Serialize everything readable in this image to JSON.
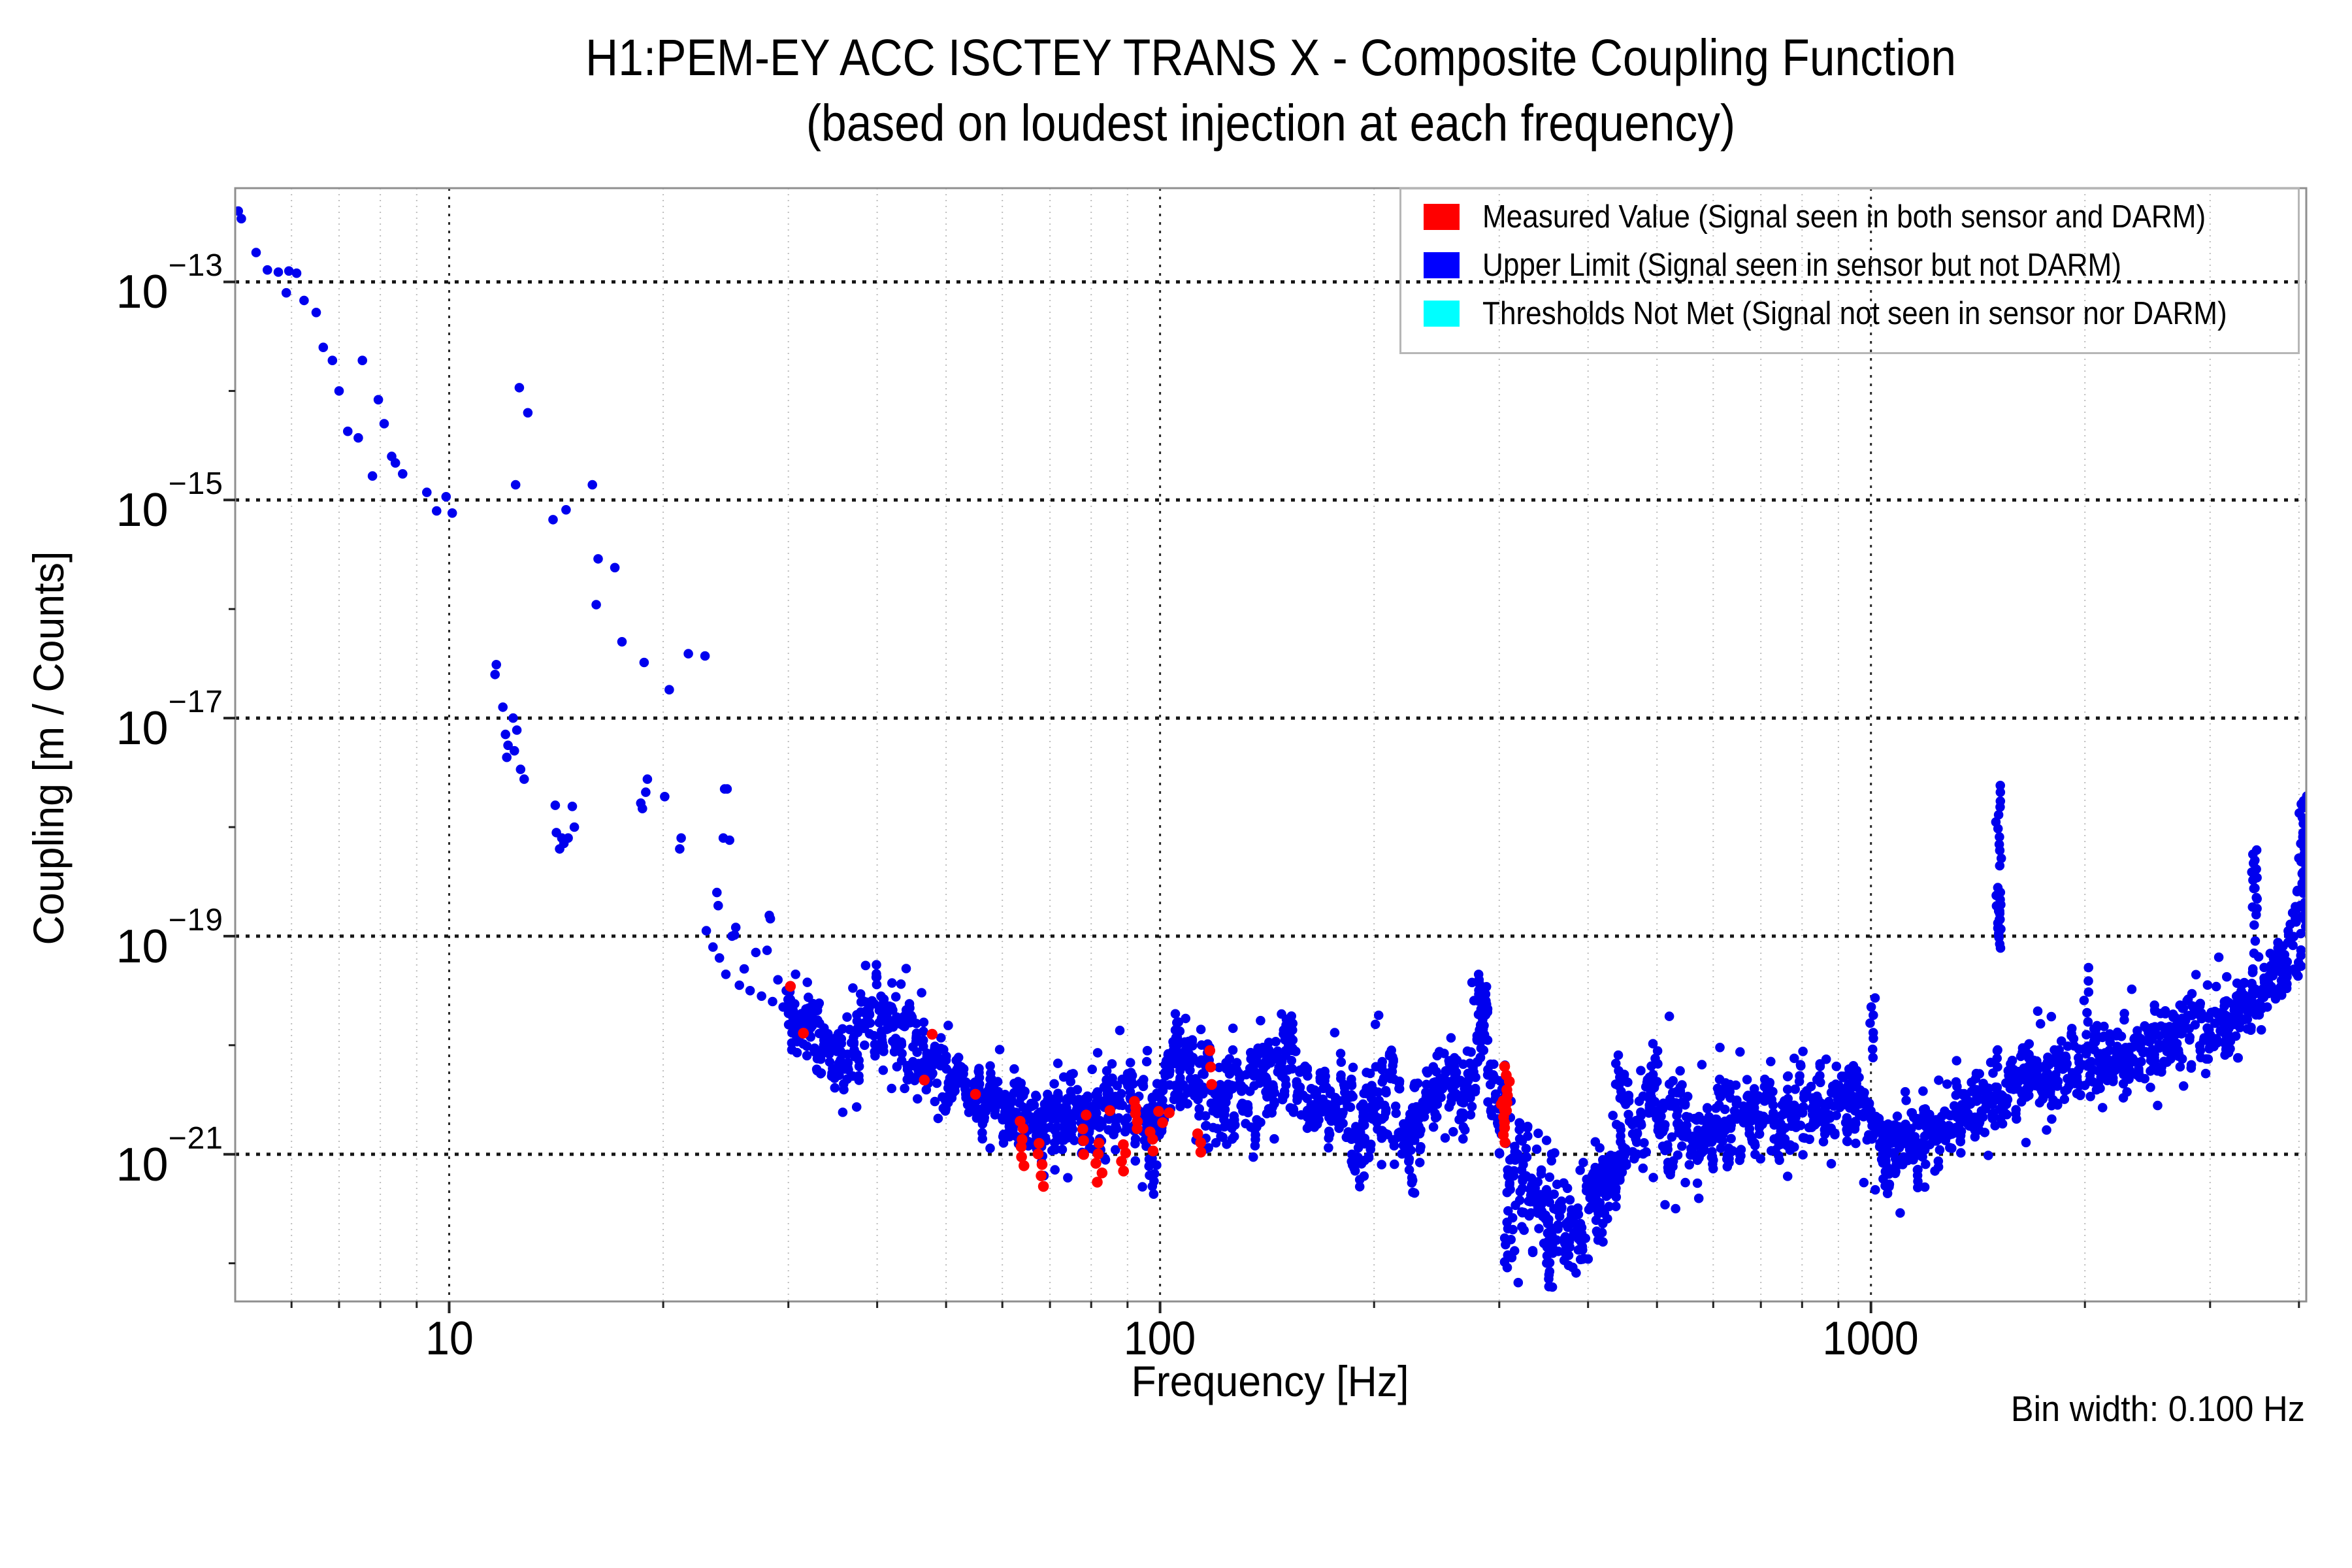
{
  "title": {
    "line1": "H1:PEM-EY ACC ISCTEY TRANS X - Composite Coupling Function",
    "line2": "(based on loudest injection at each frequency)"
  },
  "axes": {
    "x_label": "Frequency [Hz]",
    "y_label": "Coupling [m / Counts]",
    "x_ticks": [
      {
        "label": "10"
      },
      {
        "label": "100"
      },
      {
        "label": "1000"
      }
    ],
    "y_ticks": [
      {
        "base": "10",
        "exp": "−13"
      },
      {
        "base": "10",
        "exp": "−15"
      },
      {
        "base": "10",
        "exp": "−17"
      },
      {
        "base": "10",
        "exp": "−19"
      },
      {
        "base": "10",
        "exp": "−21"
      }
    ]
  },
  "annotations": {
    "bin_width": "Bin width: 0.100 Hz"
  },
  "legend": [
    {
      "label": "Measured Value (Signal seen in both sensor and DARM)",
      "color": "#ff0000"
    },
    {
      "label": "Upper Limit (Signal seen in sensor but not DARM)",
      "color": "#0000ff"
    },
    {
      "label": "Thresholds Not Met (Signal not seen in sensor nor DARM)",
      "color": "#00ffff"
    }
  ],
  "chart_data": {
    "type": "scatter",
    "title": "H1:PEM-EY ACC ISCTEY TRANS X - Composite Coupling Function (based on loudest injection at each frequency)",
    "xlabel": "Frequency [Hz]",
    "ylabel": "Coupling [m / Counts]",
    "x_scale": "log",
    "y_scale": "log",
    "xlim": [
      5,
      4096
    ],
    "ylim_log10": [
      -22.35,
      -12.14
    ],
    "bin_width_hz": 0.1,
    "grid": true,
    "legend_position": "upper right",
    "x_gridlines_major": [
      10,
      100,
      1000
    ],
    "x_gridlines_minor": [
      6,
      7,
      8,
      9,
      20,
      30,
      40,
      50,
      60,
      70,
      80,
      90,
      200,
      300,
      400,
      500,
      600,
      700,
      800,
      900,
      2000,
      3000,
      4000
    ],
    "y_gridlines_log10": [
      -13,
      -15,
      -17,
      -19,
      -21
    ],
    "y_ticks_minor_log10": [
      -14,
      -16,
      -18,
      -20,
      -22
    ],
    "series": [
      {
        "name": "Measured Value (Signal seen in both sensor and DARM)",
        "color": "#ff0000",
        "points": [
          [
            30.2,
            -19.46
          ],
          [
            31.5,
            -19.89
          ],
          [
            46.6,
            -20.32
          ],
          [
            47.8,
            -19.9
          ],
          [
            55,
            -20.45
          ],
          [
            85,
            -20.6
          ],
          [
            103,
            -20.62
          ],
          [
            117.5,
            -20.05
          ],
          [
            117.8,
            -20.2
          ],
          [
            118.2,
            -20.36
          ]
        ],
        "columns": [
          [
            64,
            -21.1,
            -20.7,
            6
          ],
          [
            68,
            -21.3,
            -20.9,
            5
          ],
          [
            78,
            -21.0,
            -20.65,
            4
          ],
          [
            82,
            -21.25,
            -20.9,
            5
          ],
          [
            88.8,
            -21.15,
            -20.9,
            4
          ],
          [
            93,
            -20.76,
            -20.53,
            5
          ],
          [
            97,
            -20.96,
            -20.79,
            3
          ],
          [
            100,
            -20.72,
            -20.6,
            2
          ],
          [
            113,
            -20.98,
            -20.82,
            3
          ],
          [
            304,
            -20.88,
            -20.5,
            8
          ],
          [
            306.5,
            -20.6,
            -20.2,
            7
          ]
        ]
      },
      {
        "name": "Upper Limit (Signal seen in sensor but not DARM)",
        "color": "#0000ff",
        "sparse_points": [
          [
            5.05,
            -12.35
          ],
          [
            5.1,
            -12.42
          ],
          [
            5.35,
            -12.73
          ],
          [
            5.55,
            -12.89
          ],
          [
            5.75,
            -12.91
          ],
          [
            5.95,
            -12.9
          ],
          [
            6.1,
            -12.92
          ],
          [
            5.9,
            -13.1
          ],
          [
            6.25,
            -13.17
          ],
          [
            6.5,
            -13.28
          ],
          [
            6.65,
            -13.6
          ],
          [
            6.85,
            -13.72
          ],
          [
            7.0,
            -14.0
          ],
          [
            7.55,
            -13.72
          ],
          [
            7.2,
            -14.37
          ],
          [
            7.45,
            -14.43
          ],
          [
            7.95,
            -14.08
          ],
          [
            8.1,
            -14.3
          ],
          [
            8.3,
            -14.6
          ],
          [
            8.4,
            -14.66
          ],
          [
            8.6,
            -14.76
          ],
          [
            7.8,
            -14.78
          ],
          [
            9.3,
            -14.93
          ],
          [
            9.6,
            -15.1
          ],
          [
            9.9,
            -14.97
          ],
          [
            10.1,
            -15.12
          ],
          [
            12.55,
            -13.97
          ],
          [
            12.9,
            -14.2
          ],
          [
            12.4,
            -14.86
          ],
          [
            14.0,
            -15.18
          ],
          [
            14.6,
            -15.09
          ],
          [
            15.9,
            -14.86
          ],
          [
            16.2,
            -15.54
          ],
          [
            17.1,
            -15.62
          ],
          [
            16.1,
            -15.96
          ],
          [
            17.5,
            -16.3
          ],
          [
            18.8,
            -16.49
          ],
          [
            20.4,
            -16.74
          ],
          [
            21.7,
            -16.41
          ],
          [
            22.9,
            -16.43
          ],
          [
            11.65,
            -16.51
          ],
          [
            11.6,
            -16.6
          ],
          [
            11.9,
            -16.9
          ],
          [
            12.3,
            -17.0
          ],
          [
            12.45,
            -17.11
          ],
          [
            12.0,
            -17.15
          ],
          [
            12.1,
            -17.25
          ],
          [
            12.35,
            -17.3
          ],
          [
            12.05,
            -17.36
          ],
          [
            12.6,
            -17.47
          ],
          [
            12.75,
            -17.56
          ],
          [
            14.1,
            -17.8
          ],
          [
            14.9,
            -17.81
          ],
          [
            14.15,
            -18.05
          ],
          [
            14.4,
            -18.1
          ],
          [
            15.0,
            -18.0
          ],
          [
            14.7,
            -18.1
          ],
          [
            14.5,
            -18.15
          ],
          [
            14.3,
            -18.2
          ],
          [
            18.6,
            -17.78
          ],
          [
            18.7,
            -17.83
          ],
          [
            19.0,
            -17.56
          ],
          [
            18.9,
            -17.68
          ],
          [
            20.1,
            -17.72
          ],
          [
            21.2,
            -18.1
          ],
          [
            21.1,
            -18.2
          ],
          [
            23.8,
            -18.6
          ],
          [
            23.9,
            -18.72
          ],
          [
            24.4,
            -17.65
          ],
          [
            24.6,
            -17.65
          ],
          [
            24.3,
            -18.1
          ],
          [
            24.8,
            -18.12
          ],
          [
            25.3,
            -18.92
          ],
          [
            25.2,
            -18.99
          ],
          [
            28.2,
            -18.81
          ],
          [
            28.3,
            -18.84
          ],
          [
            28.0,
            -19.13
          ],
          [
            23.0,
            -18.95
          ],
          [
            23.5,
            -19.1
          ],
          [
            24.0,
            -19.2
          ],
          [
            24.5,
            -19.35
          ],
          [
            25.0,
            -19.0
          ],
          [
            25.6,
            -19.45
          ],
          [
            26.0,
            -19.3
          ],
          [
            26.5,
            -19.5
          ],
          [
            27.0,
            -19.15
          ],
          [
            27.5,
            -19.55
          ],
          [
            28.5,
            -19.6
          ],
          [
            29.0,
            -19.4
          ],
          [
            29.5,
            -19.65
          ],
          [
            29.8,
            -19.5
          ]
        ],
        "band": [
          [
            30,
            -19.75,
            0.35
          ],
          [
            33,
            -19.9,
            0.35
          ],
          [
            36,
            -20.15,
            0.3
          ],
          [
            40,
            -19.65,
            0.4
          ],
          [
            44,
            -19.9,
            0.4
          ],
          [
            48,
            -20.3,
            0.35
          ],
          [
            52,
            -20.4,
            0.3
          ],
          [
            57,
            -20.5,
            0.3
          ],
          [
            62,
            -20.55,
            0.35
          ],
          [
            67,
            -20.75,
            0.4
          ],
          [
            72,
            -20.65,
            0.35
          ],
          [
            77,
            -20.6,
            0.4
          ],
          [
            82,
            -20.8,
            0.4
          ],
          [
            87,
            -20.45,
            0.35
          ],
          [
            92,
            -20.6,
            0.35
          ],
          [
            97,
            -20.75,
            0.45
          ],
          [
            102,
            -20.5,
            0.4
          ],
          [
            107,
            -20.2,
            0.45
          ],
          [
            112,
            -20.35,
            0.4
          ],
          [
            118,
            -20.45,
            0.45
          ],
          [
            125,
            -20.45,
            0.4
          ],
          [
            135,
            -20.45,
            0.4
          ],
          [
            145,
            -20.3,
            0.45
          ],
          [
            152,
            -20.2,
            0.5
          ],
          [
            160,
            -20.5,
            0.35
          ],
          [
            170,
            -20.45,
            0.4
          ],
          [
            180,
            -20.55,
            0.4
          ],
          [
            190,
            -20.9,
            0.4
          ],
          [
            200,
            -20.6,
            0.45
          ],
          [
            210,
            -20.35,
            0.45
          ],
          [
            222,
            -20.9,
            0.45
          ],
          [
            235,
            -20.5,
            0.4
          ],
          [
            250,
            -20.4,
            0.4
          ],
          [
            265,
            -20.55,
            0.4
          ],
          [
            278,
            -20.2,
            0.55
          ],
          [
            285,
            -19.9,
            0.6
          ],
          [
            295,
            -20.45,
            0.45
          ],
          [
            305,
            -20.55,
            0.5
          ],
          [
            315,
            -21.25,
            0.55
          ],
          [
            330,
            -21.3,
            0.55
          ],
          [
            345,
            -21.55,
            0.5
          ],
          [
            360,
            -21.35,
            0.5
          ],
          [
            375,
            -21.75,
            0.4
          ],
          [
            390,
            -21.6,
            0.5
          ],
          [
            410,
            -21.45,
            0.5
          ],
          [
            430,
            -21.2,
            0.5
          ],
          [
            445,
            -20.7,
            0.45
          ],
          [
            465,
            -20.9,
            0.4
          ],
          [
            490,
            -20.6,
            0.45
          ],
          [
            520,
            -20.7,
            0.45
          ],
          [
            560,
            -20.85,
            0.4
          ],
          [
            600,
            -20.7,
            0.4
          ],
          [
            650,
            -20.65,
            0.4
          ],
          [
            700,
            -20.6,
            0.4
          ],
          [
            750,
            -20.6,
            0.4
          ],
          [
            800,
            -20.55,
            0.4
          ],
          [
            860,
            -20.6,
            0.35
          ],
          [
            920,
            -20.55,
            0.35
          ],
          [
            980,
            -20.6,
            0.4
          ],
          [
            1040,
            -20.95,
            0.35
          ],
          [
            1100,
            -20.95,
            0.35
          ],
          [
            1180,
            -20.9,
            0.35
          ],
          [
            1260,
            -20.75,
            0.35
          ],
          [
            1350,
            -20.6,
            0.35
          ],
          [
            1450,
            -20.45,
            0.35
          ],
          [
            1550,
            -20.35,
            0.35
          ],
          [
            1650,
            -20.3,
            0.35
          ],
          [
            1750,
            -20.3,
            0.35
          ],
          [
            1850,
            -20.25,
            0.35
          ],
          [
            1950,
            -20.2,
            0.35
          ],
          [
            2100,
            -20.15,
            0.35
          ],
          [
            2250,
            -20.1,
            0.35
          ],
          [
            2400,
            -20.05,
            0.35
          ],
          [
            2550,
            -19.95,
            0.35
          ],
          [
            2700,
            -19.9,
            0.35
          ],
          [
            2850,
            -19.85,
            0.35
          ],
          [
            3000,
            -19.8,
            0.35
          ],
          [
            3150,
            -19.75,
            0.35
          ],
          [
            3300,
            -19.65,
            0.35
          ],
          [
            3450,
            -19.55,
            0.35
          ],
          [
            3600,
            -19.45,
            0.4
          ],
          [
            3750,
            -19.35,
            0.45
          ],
          [
            3850,
            -19.25,
            0.45
          ],
          [
            3950,
            -19.0,
            0.55
          ],
          [
            4030,
            -18.7,
            0.6
          ],
          [
            4096,
            -18.4,
            0.65
          ]
        ],
        "spikes": [
          [
            105.6,
            -20.05,
            -19.73,
            6
          ],
          [
            150,
            -20.05,
            -19.7,
            8
          ],
          [
            152.5,
            -20.0,
            -19.75,
            5
          ],
          [
            211,
            -20.3,
            -20.05,
            5
          ],
          [
            283,
            -19.95,
            -19.35,
            14
          ],
          [
            286,
            -19.8,
            -19.5,
            6
          ],
          [
            440,
            -20.5,
            -20.1,
            7
          ],
          [
            495,
            -20.4,
            -19.98,
            7
          ],
          [
            520,
            -19.75,
            -19.72,
            1
          ],
          [
            1005,
            -20.1,
            -19.57,
            8
          ],
          [
            1513,
            -19.1,
            -18.55,
            14
          ],
          [
            1513,
            -18.35,
            -17.62,
            12
          ],
          [
            1519,
            -19.0,
            -18.7,
            5
          ],
          [
            2010,
            -20.0,
            -19.3,
            8
          ],
          [
            3460,
            -18.9,
            -18.25,
            9
          ],
          [
            3478,
            -18.75,
            -18.2,
            7
          ],
          [
            3472,
            -19.15,
            -19.05,
            2
          ],
          [
            4050,
            -18.6,
            -17.78,
            10
          ],
          [
            4075,
            -18.9,
            -18.1,
            9
          ],
          [
            4092,
            -18.6,
            -17.72,
            10
          ]
        ],
        "dips": [
          [
            98,
            -21.36,
            -21.05,
            6
          ],
          [
            190,
            -21.3,
            -21.02,
            5
          ],
          [
            225,
            -21.35,
            -21.05,
            5
          ],
          [
            308,
            -22.05,
            -21.62,
            7
          ],
          [
            312,
            -21.96,
            -21.5,
            6
          ],
          [
            350,
            -22.22,
            -21.85,
            6
          ],
          [
            354,
            -22.1,
            -21.8,
            4
          ],
          [
            389,
            -21.95,
            -21.55,
            6
          ],
          [
            418,
            -21.8,
            -21.45,
            5
          ],
          [
            1050,
            -21.35,
            -21.12,
            5
          ]
        ]
      },
      {
        "name": "Thresholds Not Met (Signal not seen in sensor nor DARM)",
        "color": "#00ffff",
        "points": []
      }
    ]
  }
}
